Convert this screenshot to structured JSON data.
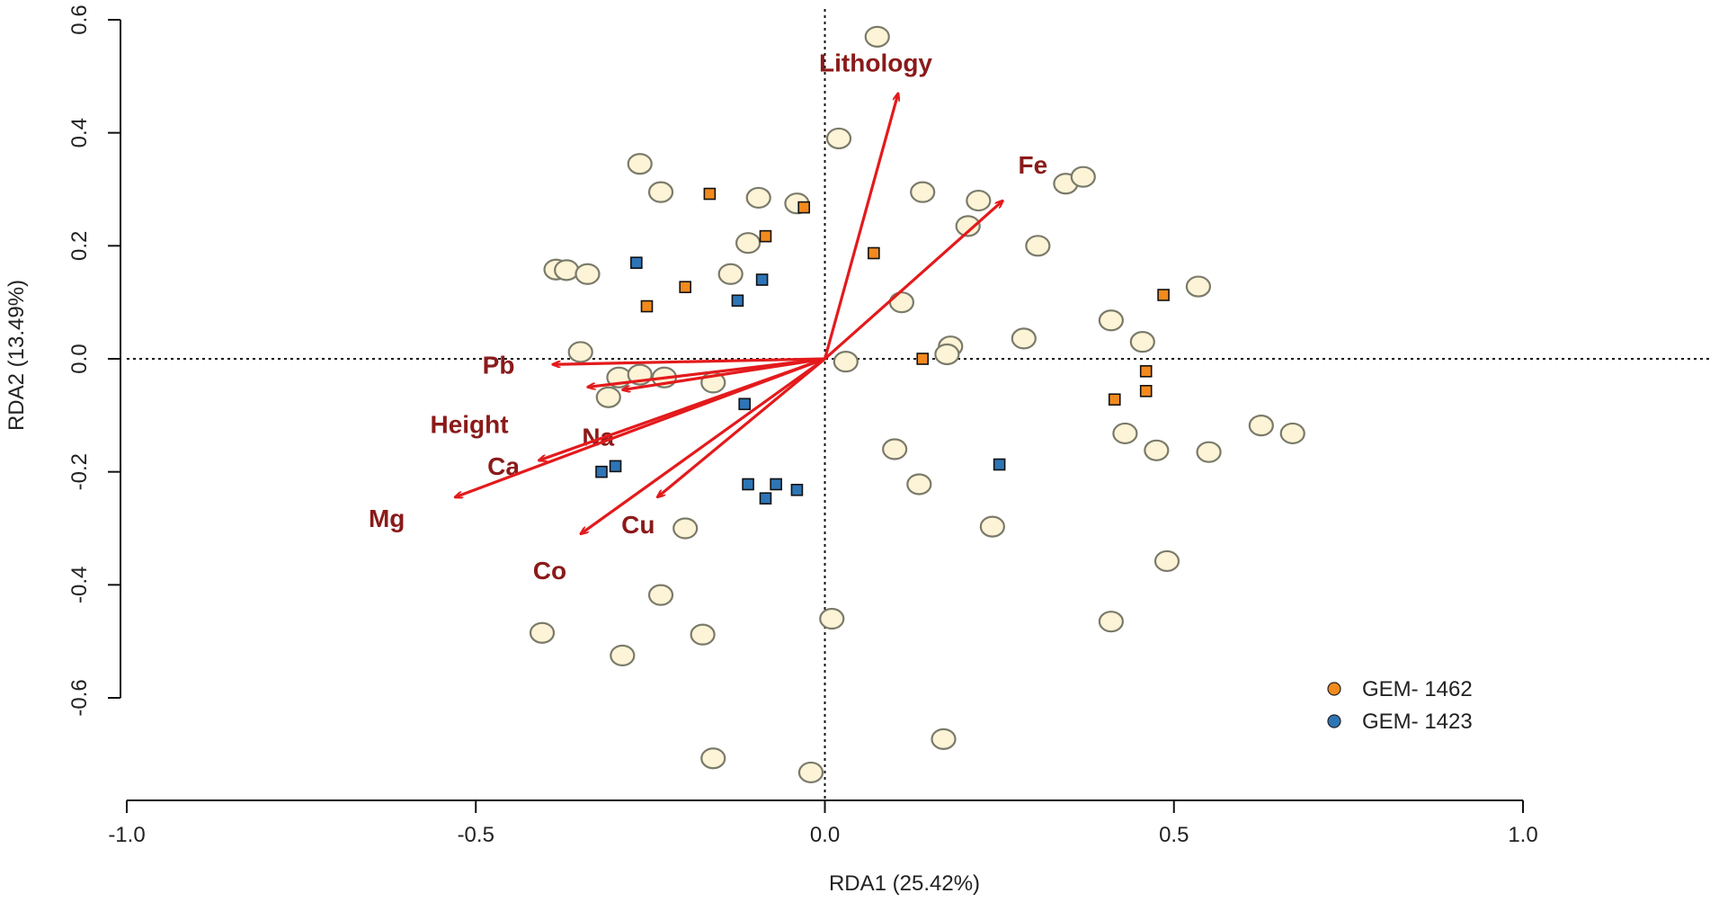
{
  "chart_data": {
    "type": "scatter",
    "title": "",
    "xlabel": "RDA1 (25.42%)",
    "ylabel": "RDA2 (13.49%)",
    "xlim": [
      -1.0,
      1.0
    ],
    "ylim": [
      -0.6,
      0.6
    ],
    "x_ticks": [
      -1.0,
      -0.5,
      0.0,
      0.5,
      1.0
    ],
    "x_tick_labels": [
      "-1.0",
      "-0.5",
      "0.0",
      "0.5",
      "1.0"
    ],
    "y_ticks": [
      -0.6,
      -0.4,
      -0.2,
      0.0,
      0.2,
      0.4,
      0.6
    ],
    "y_tick_labels": [
      "-0.6",
      "-0.4",
      "-0.2",
      "0.0",
      "0.2",
      "0.4",
      "0.6"
    ],
    "reference_lines": {
      "x": 0,
      "y": 0,
      "style": "dotted"
    },
    "colors": {
      "arrow": "#e31a1c",
      "arrow_label": "#8b1a1a",
      "site_fill": "#fdf3d6",
      "site_stroke": "#7a7a6a",
      "gem1462": "#f28a1e",
      "gem1423": "#2e75b6"
    },
    "arrows": [
      {
        "name": "Lithology",
        "x": 0.105,
        "y": 0.47
      },
      {
        "name": "Fe",
        "x": 0.255,
        "y": 0.28
      },
      {
        "name": "Pb",
        "x": -0.39,
        "y": -0.01
      },
      {
        "name": "Height",
        "x": -0.34,
        "y": -0.05
      },
      {
        "name": "Na",
        "x": -0.29,
        "y": -0.055
      },
      {
        "name": "Ca",
        "x": -0.41,
        "y": -0.18
      },
      {
        "name": "Mg",
        "x": -0.53,
        "y": -0.245
      },
      {
        "name": "Co",
        "x": -0.35,
        "y": -0.31
      },
      {
        "name": "Cu",
        "x": -0.24,
        "y": -0.245
      }
    ],
    "sites": [
      [
        0.075,
        0.57
      ],
      [
        0.02,
        0.39
      ],
      [
        -0.265,
        0.345
      ],
      [
        -0.235,
        0.295
      ],
      [
        -0.095,
        0.285
      ],
      [
        -0.04,
        0.275
      ],
      [
        0.14,
        0.295
      ],
      [
        0.22,
        0.28
      ],
      [
        0.345,
        0.31
      ],
      [
        0.37,
        0.322
      ],
      [
        0.205,
        0.235
      ],
      [
        0.305,
        0.2
      ],
      [
        -0.11,
        0.205
      ],
      [
        -0.135,
        0.15
      ],
      [
        -0.385,
        0.158
      ],
      [
        -0.37,
        0.157
      ],
      [
        -0.34,
        0.15
      ],
      [
        0.11,
        0.1
      ],
      [
        0.535,
        0.128
      ],
      [
        0.41,
        0.068
      ],
      [
        0.455,
        0.03
      ],
      [
        0.285,
        0.036
      ],
      [
        0.18,
        0.022
      ],
      [
        0.175,
        0.008
      ],
      [
        0.03,
        -0.005
      ],
      [
        -0.35,
        0.012
      ],
      [
        -0.295,
        -0.033
      ],
      [
        -0.265,
        -0.028
      ],
      [
        -0.23,
        -0.033
      ],
      [
        -0.16,
        -0.042
      ],
      [
        -0.31,
        -0.068
      ],
      [
        0.625,
        -0.118
      ],
      [
        0.67,
        -0.132
      ],
      [
        0.43,
        -0.132
      ],
      [
        0.475,
        -0.162
      ],
      [
        0.55,
        -0.165
      ],
      [
        0.1,
        -0.16
      ],
      [
        0.135,
        -0.222
      ],
      [
        -0.2,
        -0.3
      ],
      [
        0.24,
        -0.297
      ],
      [
        0.49,
        -0.358
      ],
      [
        -0.235,
        -0.418
      ],
      [
        0.01,
        -0.46
      ],
      [
        0.41,
        -0.465
      ],
      [
        -0.405,
        -0.485
      ],
      [
        -0.175,
        -0.488
      ],
      [
        -0.29,
        -0.525
      ],
      [
        -0.16,
        -0.707
      ],
      [
        -0.02,
        -0.732
      ],
      [
        0.17,
        -0.673
      ]
    ],
    "series": [
      {
        "name": "GEM- 1462",
        "points": [
          [
            -0.165,
            0.292
          ],
          [
            -0.085,
            0.217
          ],
          [
            -0.03,
            0.268
          ],
          [
            0.07,
            0.187
          ],
          [
            -0.2,
            0.127
          ],
          [
            -0.255,
            0.093
          ],
          [
            0.485,
            0.113
          ],
          [
            0.14,
            0.0
          ],
          [
            0.46,
            -0.022
          ],
          [
            0.415,
            -0.072
          ],
          [
            0.46,
            -0.057
          ]
        ]
      },
      {
        "name": "GEM- 1423",
        "points": [
          [
            -0.27,
            0.17
          ],
          [
            -0.125,
            0.103
          ],
          [
            -0.09,
            0.14
          ],
          [
            -0.115,
            -0.08
          ],
          [
            0.25,
            -0.187
          ],
          [
            -0.3,
            -0.19
          ],
          [
            -0.32,
            -0.2
          ],
          [
            -0.11,
            -0.222
          ],
          [
            -0.07,
            -0.222
          ],
          [
            -0.04,
            -0.232
          ],
          [
            -0.085,
            -0.247
          ]
        ]
      }
    ],
    "legend": {
      "position": "bottom-right",
      "entries": [
        "GEM- 1462",
        "GEM- 1423"
      ]
    }
  }
}
